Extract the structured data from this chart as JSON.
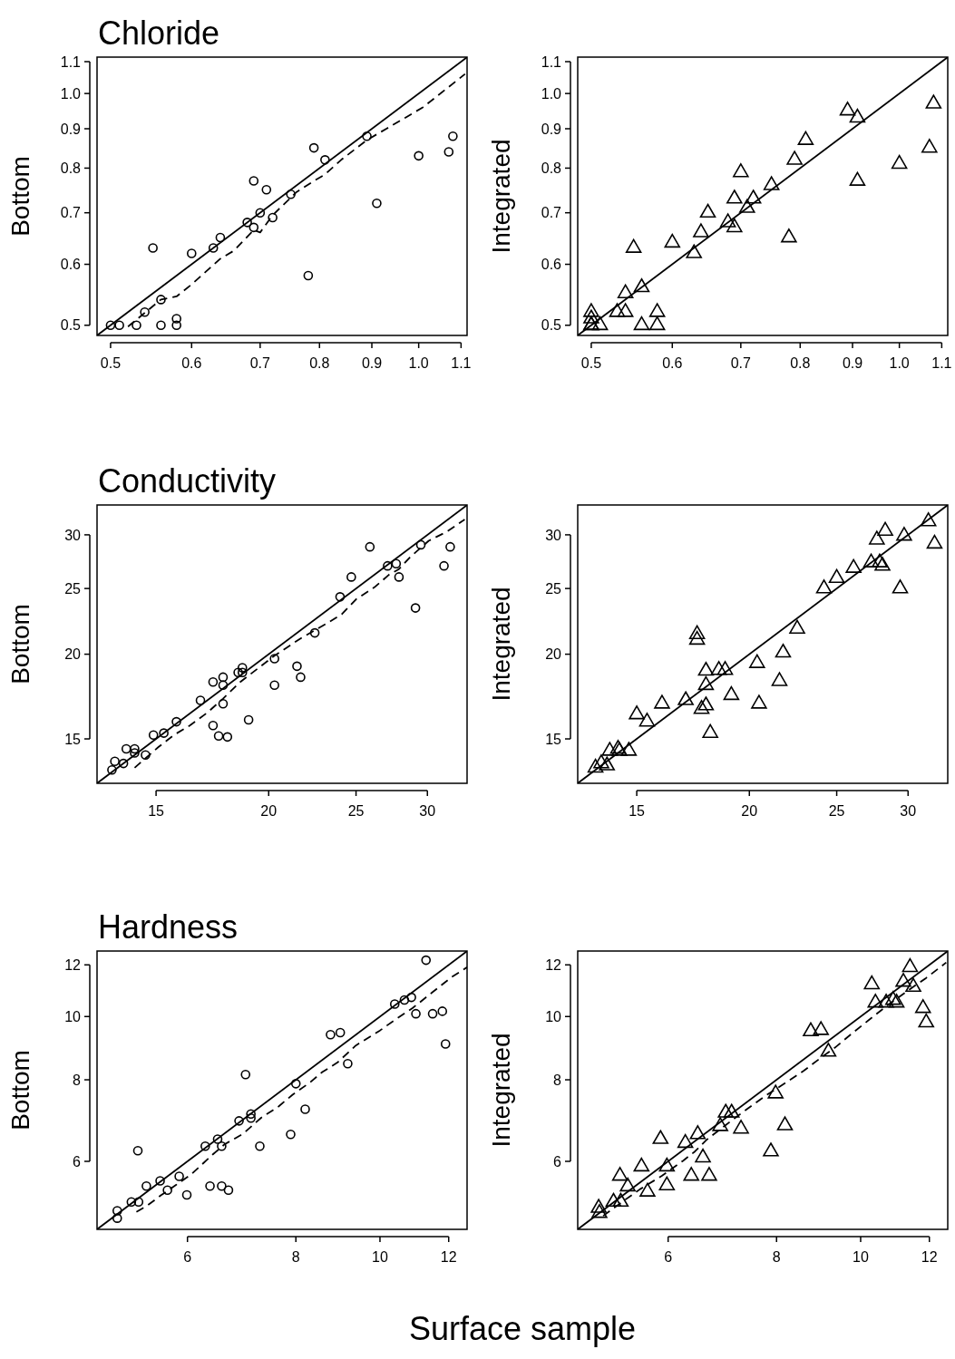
{
  "chart_data": [
    {
      "type": "scatter",
      "title": "Chloride",
      "ylabel": "Bottom",
      "log": "xy",
      "xlim": [
        0.485,
        1.115
      ],
      "ylim": [
        0.485,
        1.115
      ],
      "xticks": [
        0.5,
        0.6,
        0.7,
        0.8,
        0.9,
        {
          "value": 1.0,
          "label": "1.0"
        },
        1.1
      ],
      "yticks": [
        0.5,
        0.6,
        0.7,
        0.8,
        0.9,
        {
          "value": 1.0,
          "label": "1.0"
        },
        1.1
      ],
      "series": [
        {
          "type": "scatter",
          "marker": "circle",
          "color": "#000000",
          "x": [
            0.5,
            0.51,
            0.53,
            0.56,
            0.58,
            0.58,
            0.54,
            0.56,
            0.55,
            0.6,
            0.63,
            0.64,
            0.68,
            0.69,
            0.7,
            0.72,
            0.69,
            0.71,
            0.75,
            0.78,
            0.79,
            0.81,
            0.89,
            0.91,
            1.0,
            1.07,
            1.08
          ],
          "values": [
            0.5,
            0.5,
            0.5,
            0.5,
            0.5,
            0.51,
            0.52,
            0.54,
            0.63,
            0.62,
            0.63,
            0.65,
            0.68,
            0.67,
            0.7,
            0.69,
            0.77,
            0.75,
            0.74,
            0.58,
            0.85,
            0.82,
            0.88,
            0.72,
            0.83,
            0.84,
            0.88
          ]
        },
        {
          "type": "line",
          "line_style": "solid",
          "color": "#000000",
          "x": [
            0.485,
            1.115
          ],
          "values": [
            0.485,
            1.115
          ]
        },
        {
          "type": "line",
          "line_style": "dashed",
          "color": "#000000",
          "x": [
            0.52,
            0.56,
            0.58,
            0.6,
            0.64,
            0.66,
            0.69,
            0.7,
            0.72,
            0.76,
            0.79,
            0.81,
            0.84,
            0.89,
            0.93,
            0.97,
            1.01,
            1.07,
            1.11
          ],
          "values": [
            0.498,
            0.54,
            0.545,
            0.565,
            0.61,
            0.625,
            0.665,
            0.66,
            0.695,
            0.745,
            0.77,
            0.785,
            0.82,
            0.87,
            0.9,
            0.93,
            0.96,
            1.02,
            1.06
          ]
        }
      ]
    },
    {
      "type": "scatter",
      "ylabel": "Integrated",
      "log": "xy",
      "xlim": [
        0.485,
        1.115
      ],
      "ylim": [
        0.485,
        1.115
      ],
      "xticks": [
        0.5,
        0.6,
        0.7,
        0.8,
        0.9,
        {
          "value": 1.0,
          "label": "1.0"
        },
        1.1
      ],
      "yticks": [
        0.5,
        0.6,
        0.7,
        0.8,
        0.9,
        {
          "value": 1.0,
          "label": "1.0"
        },
        1.1
      ],
      "series": [
        {
          "type": "scatter",
          "marker": "triangle",
          "color": "#000000",
          "x": [
            0.5,
            0.5,
            0.5,
            0.5,
            0.51,
            0.53,
            0.54,
            0.54,
            0.56,
            0.58,
            0.58,
            0.55,
            0.56,
            0.6,
            0.63,
            0.64,
            0.65,
            0.68,
            0.69,
            0.69,
            0.7,
            0.71,
            0.72,
            0.75,
            0.78,
            0.79,
            0.81,
            0.89,
            0.91,
            0.91,
            1.0,
            1.07,
            1.08
          ],
          "values": [
            0.52,
            0.51,
            0.5,
            0.5,
            0.5,
            0.52,
            0.52,
            0.55,
            0.5,
            0.52,
            0.5,
            0.63,
            0.56,
            0.64,
            0.62,
            0.66,
            0.7,
            0.68,
            0.67,
            0.73,
            0.79,
            0.71,
            0.73,
            0.76,
            0.65,
            0.82,
            0.87,
            0.95,
            0.93,
            0.77,
            0.81,
            0.85,
            0.97
          ]
        },
        {
          "type": "line",
          "line_style": "solid",
          "color": "#000000",
          "x": [
            0.485,
            1.115
          ],
          "values": [
            0.485,
            1.115
          ]
        }
      ]
    },
    {
      "type": "scatter",
      "title": "Conductivity",
      "ylabel": "Bottom",
      "log": "xy",
      "xlim": [
        12.9,
        33.2
      ],
      "ylim": [
        12.9,
        33.2
      ],
      "xticks": [
        15,
        20,
        25,
        30
      ],
      "yticks": [
        15,
        20,
        25,
        30
      ],
      "series": [
        {
          "type": "scatter",
          "marker": "circle",
          "color": "#000000",
          "x": [
            13.4,
            13.5,
            13.8,
            13.9,
            14.2,
            14.2,
            14.6,
            14.9,
            15.3,
            15.8,
            16.8,
            17.35,
            17.8,
            17.8,
            17.8,
            17.35,
            17.6,
            18.0,
            18.5,
            18.7,
            18.7,
            19.0,
            20.3,
            20.3,
            21.5,
            21.7,
            22.5,
            24.0,
            24.7,
            25.9,
            27.1,
            27.7,
            27.9,
            29.1,
            29.5,
            31.3,
            31.8
          ],
          "values": [
            13.5,
            13.9,
            13.8,
            14.5,
            14.5,
            14.3,
            14.2,
            15.2,
            15.3,
            15.9,
            17.1,
            18.2,
            18.5,
            18.0,
            16.9,
            15.7,
            15.15,
            15.1,
            18.8,
            19.1,
            18.8,
            16.0,
            19.7,
            18.0,
            19.2,
            18.5,
            21.5,
            24.3,
            26.0,
            28.8,
            27.0,
            27.2,
            26.0,
            23.4,
            29.0,
            27.0,
            28.8
          ]
        },
        {
          "type": "line",
          "line_style": "solid",
          "color": "#000000",
          "x": [
            12.9,
            33.2
          ],
          "values": [
            12.9,
            33.2
          ]
        },
        {
          "type": "line",
          "line_style": "dashed",
          "color": "#000000",
          "x": [
            14.2,
            15.1,
            15.7,
            16.35,
            17.1,
            17.8,
            18.6,
            19.5,
            20.3,
            21.7,
            23.2,
            24.1,
            25.0,
            26.2,
            27.2,
            27.9,
            28.7,
            30.1,
            31.5,
            33.0
          ],
          "values": [
            13.6,
            14.6,
            15.2,
            15.7,
            16.4,
            17.2,
            18.2,
            19.1,
            19.9,
            21.1,
            22.2,
            22.9,
            24.1,
            25.1,
            26.2,
            26.7,
            27.8,
            29.4,
            30.3,
            31.6
          ]
        }
      ]
    },
    {
      "type": "scatter",
      "ylabel": "Integrated",
      "log": "xy",
      "xlim": [
        12.9,
        33.2
      ],
      "ylim": [
        12.9,
        33.2
      ],
      "xticks": [
        15,
        20,
        25,
        30
      ],
      "yticks": [
        15,
        20,
        25,
        30
      ],
      "series": [
        {
          "type": "scatter",
          "marker": "triangle",
          "color": "#000000",
          "x": [
            13.5,
            13.7,
            13.9,
            14.0,
            14.3,
            14.35,
            14.7,
            15.0,
            15.4,
            16.0,
            17.0,
            17.5,
            17.5,
            17.7,
            17.9,
            17.9,
            17.9,
            18.1,
            18.5,
            18.8,
            19.1,
            20.4,
            20.5,
            21.6,
            21.8,
            22.6,
            24.2,
            25.0,
            26.1,
            27.3,
            27.7,
            27.9,
            28.1,
            28.3,
            29.4,
            29.7,
            31.6,
            32.1
          ],
          "values": [
            13.6,
            13.8,
            13.7,
            14.4,
            14.5,
            14.4,
            14.4,
            16.3,
            15.9,
            16.9,
            17.1,
            21.4,
            21.0,
            16.6,
            16.8,
            18.9,
            18.0,
            15.3,
            18.95,
            18.95,
            17.4,
            19.4,
            16.9,
            18.25,
            20.1,
            21.8,
            25.0,
            25.9,
            26.8,
            27.3,
            29.5,
            27.3,
            27.0,
            30.4,
            25.0,
            29.9,
            31.4,
            29.1
          ]
        },
        {
          "type": "line",
          "line_style": "solid",
          "color": "#000000",
          "x": [
            12.9,
            33.2
          ],
          "values": [
            12.9,
            33.2
          ]
        }
      ]
    },
    {
      "type": "scatter",
      "title": "Hardness",
      "ylabel": "Bottom",
      "xlabel": "Surface sample",
      "log": "xy",
      "xlim": [
        4.72,
        12.6
      ],
      "ylim": [
        4.72,
        12.6
      ],
      "xticks": [
        6,
        8,
        10,
        12
      ],
      "yticks": [
        6,
        8,
        10,
        12
      ],
      "series": [
        {
          "type": "scatter",
          "marker": "circle",
          "color": "#000000",
          "x": [
            4.98,
            4.98,
            5.17,
            5.27,
            5.26,
            5.38,
            5.58,
            5.69,
            5.87,
            5.99,
            6.29,
            6.37,
            6.5,
            6.57,
            6.57,
            6.69,
            6.88,
            7.0,
            7.1,
            7.1,
            7.27,
            7.89,
            8.0,
            8.2,
            8.77,
            9.0,
            9.18,
            10.4,
            10.67,
            10.87,
            11.0,
            11.3,
            11.5,
            11.8,
            11.9
          ],
          "values": [
            5.04,
            4.91,
            5.2,
            5.2,
            6.23,
            5.5,
            5.6,
            5.42,
            5.69,
            5.33,
            6.33,
            5.5,
            6.49,
            6.33,
            5.5,
            5.42,
            6.92,
            8.15,
            7.09,
            6.99,
            6.33,
            6.6,
            7.89,
            7.21,
            9.38,
            9.45,
            8.47,
            10.45,
            10.6,
            10.7,
            10.1,
            12.2,
            10.1,
            10.19,
            9.08
          ]
        },
        {
          "type": "line",
          "line_style": "solid",
          "color": "#000000",
          "x": [
            4.72,
            12.6
          ],
          "values": [
            4.72,
            12.6
          ]
        },
        {
          "type": "line",
          "line_style": "dashed",
          "color": "#000000",
          "x": [
            5.24,
            5.39,
            5.59,
            5.82,
            6.06,
            6.41,
            6.62,
            6.95,
            7.3,
            7.64,
            7.93,
            8.3,
            8.58,
            8.93,
            9.38,
            10.0,
            10.4,
            10.9,
            11.5,
            12.1,
            12.6
          ],
          "values": [
            5.02,
            5.13,
            5.32,
            5.52,
            5.73,
            6.14,
            6.37,
            6.61,
            7.0,
            7.28,
            7.59,
            7.92,
            8.22,
            8.5,
            9.03,
            9.52,
            9.88,
            10.3,
            10.9,
            11.5,
            11.9
          ]
        }
      ]
    },
    {
      "type": "scatter",
      "ylabel": "Integrated",
      "log": "xy",
      "xlim": [
        4.72,
        12.6
      ],
      "ylim": [
        4.72,
        12.6
      ],
      "xticks": [
        6,
        8,
        10,
        12
      ],
      "yticks": [
        6,
        8,
        10,
        12
      ],
      "series": [
        {
          "type": "scatter",
          "marker": "triangle",
          "color": "#000000",
          "x": [
            4.99,
            5.0,
            5.19,
            5.29,
            5.28,
            5.39,
            5.59,
            5.68,
            5.88,
            5.98,
            5.98,
            6.28,
            6.38,
            6.49,
            6.58,
            6.69,
            6.89,
            6.99,
            7.1,
            7.28,
            7.88,
            7.98,
            8.18,
            8.76,
            9.0,
            9.18,
            10.3,
            10.4,
            10.7,
            10.9,
            11.0,
            11.2,
            11.4,
            11.5,
            11.8,
            11.9
          ],
          "values": [
            5.09,
            5.0,
            5.2,
            5.2,
            5.7,
            5.49,
            5.89,
            5.39,
            6.49,
            5.89,
            5.51,
            6.4,
            5.7,
            6.6,
            6.08,
            5.7,
            6.79,
            7.12,
            7.12,
            6.73,
            6.21,
            7.62,
            6.81,
            9.49,
            9.53,
            8.83,
            11.2,
            10.5,
            10.5,
            10.6,
            10.5,
            11.3,
            11.9,
            11.1,
            10.3,
            9.79
          ]
        },
        {
          "type": "line",
          "line_style": "solid",
          "color": "#000000",
          "x": [
            4.72,
            12.6
          ],
          "values": [
            4.72,
            12.6
          ]
        },
        {
          "type": "line",
          "line_style": "dashed",
          "color": "#000000",
          "x": [
            5.05,
            5.3,
            5.57,
            5.9,
            6.24,
            6.44,
            6.65,
            6.99,
            7.34,
            7.8,
            8.2,
            8.6,
            8.95,
            9.34,
            9.79,
            10.3,
            10.8,
            11.35,
            11.9,
            12.55
          ],
          "values": [
            4.95,
            5.19,
            5.44,
            5.7,
            6.01,
            6.21,
            6.48,
            6.82,
            7.16,
            7.59,
            7.92,
            8.26,
            8.6,
            8.96,
            9.44,
            9.96,
            10.46,
            10.97,
            11.46,
            12.1
          ]
        }
      ]
    }
  ]
}
